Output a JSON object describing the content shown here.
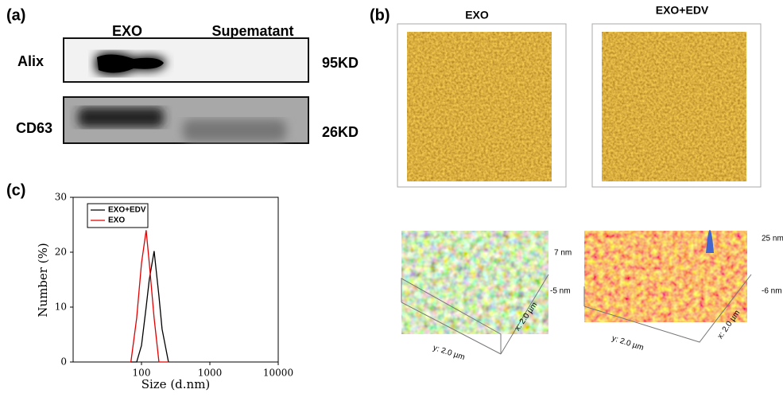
{
  "panels": {
    "a": {
      "label": "(a)",
      "columns": [
        "EXO",
        "Supematant"
      ],
      "rows": [
        {
          "name": "Alix",
          "size": "95KD"
        },
        {
          "name": "CD63",
          "size": "26KD"
        }
      ]
    },
    "b": {
      "label": "(b)",
      "images": [
        {
          "title": "EXO",
          "z_max": "7 nm",
          "z_min": "-5 nm",
          "x_axis": "x: 2.0 µm",
          "y_axis": "y: 2.0 µm"
        },
        {
          "title": "EXO+EDV",
          "z_max": "25 nm",
          "z_min": "-6 nm",
          "x_axis": "x: 2.0 µm",
          "y_axis": "y: 2.0 µm"
        }
      ]
    },
    "c": {
      "label": "(c)"
    }
  },
  "chart_data": {
    "type": "line",
    "xlabel": "Size (d.nm)",
    "ylabel": "Number (%)",
    "xscale": "log",
    "xlim": [
      10,
      10000
    ],
    "xticks": [
      100,
      1000,
      10000
    ],
    "ylim": [
      0,
      30
    ],
    "yticks": [
      0,
      10,
      20,
      30
    ],
    "legend": "upper left",
    "x": [
      70,
      85,
      100,
      117,
      130,
      153,
      180,
      200,
      248
    ],
    "series": [
      {
        "name": "EXO+EDV",
        "color": "#000000",
        "values": [
          0,
          0,
          3,
          10,
          15,
          20.2,
          12,
          6,
          0
        ]
      },
      {
        "name": "EXO",
        "color": "#e00000",
        "values": [
          0,
          8,
          18,
          24,
          18,
          8,
          0,
          0,
          0
        ]
      }
    ]
  }
}
